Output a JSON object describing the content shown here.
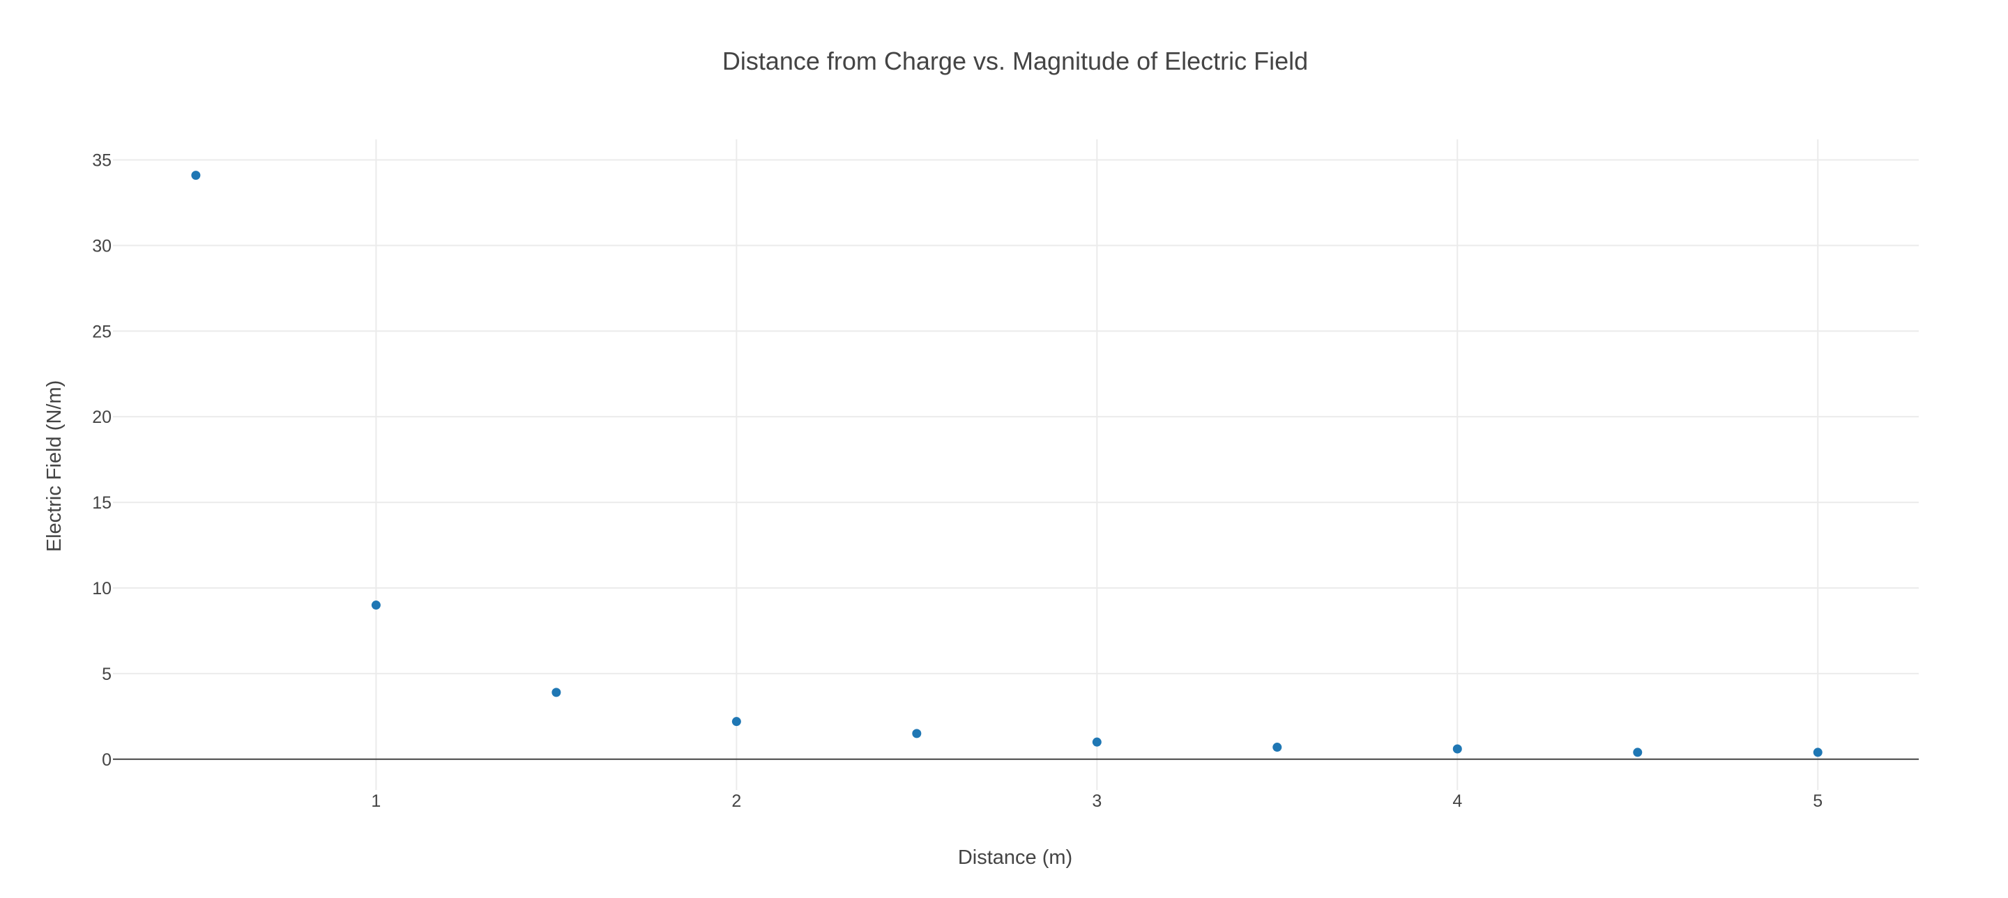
{
  "chart_data": {
    "type": "scatter",
    "title": "Distance from Charge vs. Magnitude of Electric Field",
    "xlabel": "Distance (m)",
    "ylabel": "Electric Field (N/m)",
    "x": [
      0.5,
      1.0,
      1.5,
      2.0,
      2.5,
      3.0,
      3.5,
      4.0,
      4.5,
      5.0
    ],
    "y": [
      34.1,
      9.0,
      3.9,
      2.2,
      1.5,
      1.0,
      0.7,
      0.6,
      0.4,
      0.4
    ],
    "xlim": [
      0.27,
      5.28
    ],
    "ylim": [
      -1.8,
      36.2
    ],
    "xticks": [
      1,
      2,
      3,
      4,
      5
    ],
    "yticks": [
      0,
      5,
      10,
      15,
      20,
      25,
      30,
      35
    ],
    "grid": true,
    "legend": "none",
    "marker_color": "#1f77b4"
  }
}
